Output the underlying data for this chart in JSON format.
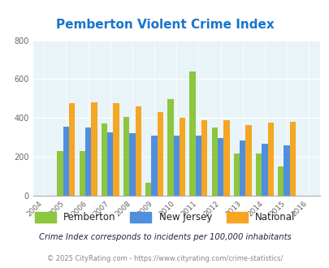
{
  "title": "Pemberton Violent Crime Index",
  "years": [
    2005,
    2006,
    2007,
    2008,
    2009,
    2010,
    2011,
    2012,
    2013,
    2014,
    2015
  ],
  "pemberton": [
    230,
    230,
    370,
    405,
    65,
    495,
    640,
    350,
    215,
    215,
    150
  ],
  "new_jersey": [
    355,
    350,
    325,
    320,
    310,
    310,
    310,
    295,
    285,
    265,
    260
  ],
  "national": [
    475,
    480,
    475,
    460,
    430,
    400,
    390,
    390,
    365,
    375,
    380
  ],
  "colors": {
    "pemberton": "#8dc63f",
    "new_jersey": "#4f8fde",
    "national": "#f5a623"
  },
  "xlim": [
    2003.5,
    2016.5
  ],
  "ylim": [
    0,
    800
  ],
  "yticks": [
    0,
    200,
    400,
    600,
    800
  ],
  "bg_color": "#e8f4f8",
  "title_color": "#1874CD",
  "footnote1": "Crime Index corresponds to incidents per 100,000 inhabitants",
  "footnote2": "© 2025 CityRating.com - https://www.cityrating.com/crime-statistics/",
  "bar_width": 0.27,
  "legend_labels": [
    "Pemberton",
    "New Jersey",
    "National"
  ]
}
